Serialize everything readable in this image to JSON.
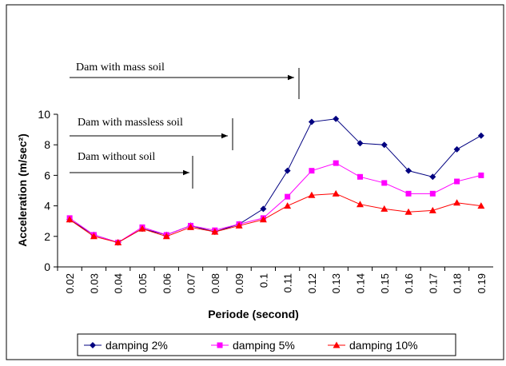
{
  "chart_data": {
    "type": "line",
    "xlabel": "Periode (second)",
    "ylabel": "Acceleration (m/sec²)",
    "categories": [
      "0.02",
      "0.03",
      "0.04",
      "0.05",
      "0.06",
      "0.07",
      "0.08",
      "0.09",
      "0.1",
      "0.11",
      "0.12",
      "0.13",
      "0.14",
      "0.15",
      "0.16",
      "0.17",
      "0.18",
      "0.19"
    ],
    "series": [
      {
        "name": "damping 2%",
        "color": "#000080",
        "marker": "diamond",
        "values": [
          3.1,
          2.1,
          1.6,
          2.5,
          2.1,
          2.7,
          2.3,
          2.8,
          3.8,
          6.3,
          9.5,
          9.7,
          8.1,
          8.0,
          6.3,
          5.9,
          7.7,
          8.6
        ]
      },
      {
        "name": "damping 5%",
        "color": "#ff00ff",
        "marker": "square",
        "values": [
          3.2,
          2.1,
          1.6,
          2.6,
          2.1,
          2.7,
          2.4,
          2.8,
          3.2,
          4.6,
          6.3,
          6.8,
          5.9,
          5.5,
          4.8,
          4.8,
          5.6,
          6.0
        ]
      },
      {
        "name": "damping 10%",
        "color": "#ff0000",
        "marker": "triangle",
        "values": [
          3.1,
          2.0,
          1.6,
          2.5,
          2.0,
          2.6,
          2.3,
          2.7,
          3.1,
          4.0,
          4.7,
          4.8,
          4.1,
          3.8,
          3.6,
          3.7,
          4.2,
          4.0
        ]
      }
    ],
    "ylim": [
      0,
      10
    ],
    "yticks": [
      0,
      2,
      4,
      6,
      8,
      10
    ],
    "legend": "bottom",
    "annotations": [
      "Dam with mass soil",
      "Dam with massless soil",
      "Dam without soil"
    ]
  }
}
